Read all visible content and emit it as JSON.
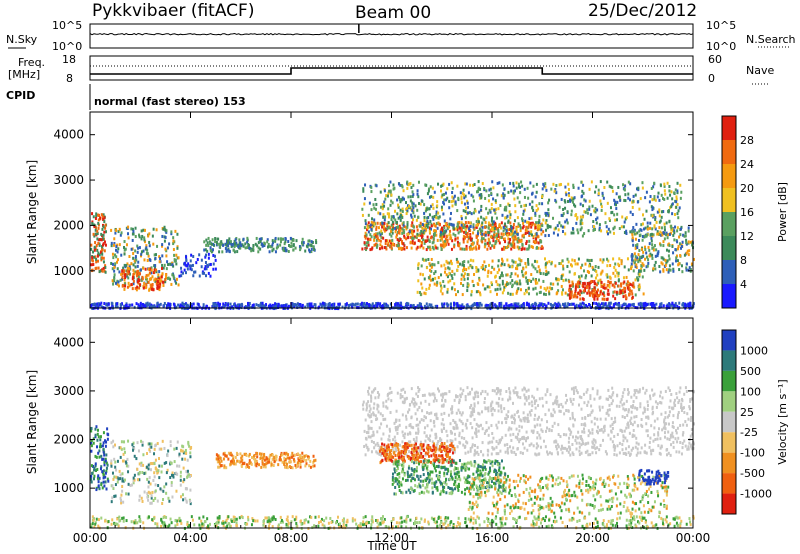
{
  "header": {
    "station": "Pykkvibaer (fitACF)",
    "beam": "Beam 00",
    "date": "25/Dec/2012"
  },
  "panels": {
    "nsky_label": "N.Sky",
    "nsearch_label": "N.Search",
    "nsky_ticks": [
      "10^5",
      "10^0"
    ],
    "nsearch_ticks": [
      "10^5",
      "10^0"
    ],
    "freq_label_1": "Freq.",
    "freq_label_2": "[MHz]",
    "freq_ticks": [
      "18",
      "8"
    ],
    "nave_label": "Nave",
    "nave_ticks": [
      "60",
      "0"
    ],
    "cpid_label": "CPID",
    "cpid_text": "normal (fast stereo) 153"
  },
  "colors": {
    "power_scale": [
      "#1a1aff",
      "#2e5fb8",
      "#3c8a5a",
      "#5aa060",
      "#f0c020",
      "#f59a10",
      "#f06a10",
      "#e02010"
    ],
    "velocity_scale": [
      "#2040c0",
      "#2d7a7a",
      "#3aa03a",
      "#a0d080",
      "#c8c8c8",
      "#f0c060",
      "#f09020",
      "#f06010",
      "#e02010"
    ]
  },
  "chart_data": [
    {
      "type": "heatmap",
      "name": "power",
      "ylabel": "Slant Range [km]",
      "xlabel": "",
      "ylim": [
        180,
        4500
      ],
      "yticks": [
        "1000",
        "2000",
        "3000",
        "4000"
      ],
      "x_range_hours": [
        0,
        24
      ],
      "colorbar_label": "Power [dB]",
      "colorbar_ticks": [
        "4",
        "8",
        "12",
        "16",
        "20",
        "24",
        "28"
      ],
      "colorbar_range": [
        0,
        32
      ]
    },
    {
      "type": "heatmap",
      "name": "velocity",
      "ylabel": "Slant Range [km]",
      "xlabel": "Time UT",
      "ylim": [
        180,
        4500
      ],
      "yticks": [
        "1000",
        "2000",
        "3000",
        "4000"
      ],
      "xticks": [
        "00:00",
        "04:00",
        "08:00",
        "12:00",
        "16:00",
        "20:00",
        "00:00"
      ],
      "colorbar_label": "Velocity [m s⁻¹]",
      "colorbar_ticks": [
        "1000",
        "500",
        "100",
        "25",
        "-25",
        "-100",
        "-500",
        "-1000"
      ]
    }
  ]
}
